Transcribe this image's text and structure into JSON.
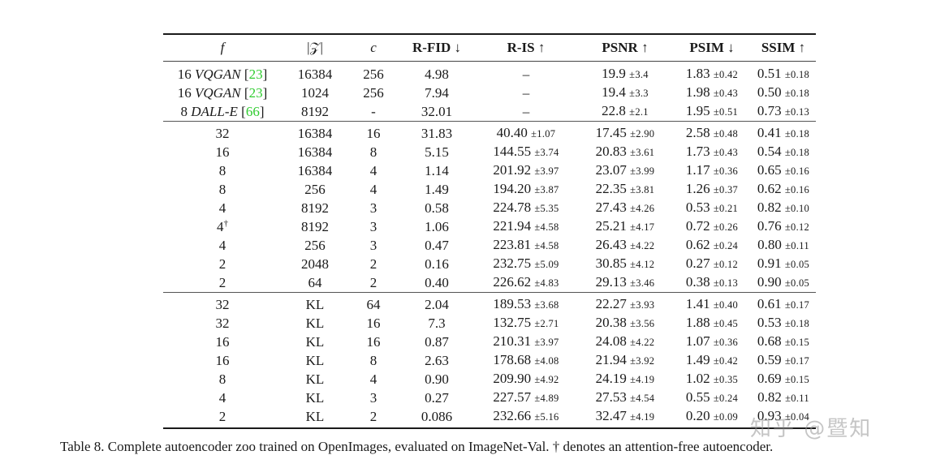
{
  "table": {
    "headers": {
      "f": "f",
      "z": "|𝒵|",
      "c": "c",
      "rfid": "R-FID ↓",
      "ris": "R-IS ↑",
      "psnr": "PSNR ↑",
      "psim": "PSIM ↓",
      "ssim": "SSIM ↑"
    },
    "baselines": [
      {
        "f_num": "16",
        "f_name": "VQGAN",
        "ref": "23",
        "z": "16384",
        "c": "256",
        "rfid": "4.98",
        "ris": "–",
        "ris_pm": "",
        "psnr": "19.9",
        "psnr_pm": "±3.4",
        "psim": "1.83",
        "psim_pm": "±0.42",
        "ssim": "0.51",
        "ssim_pm": "±0.18"
      },
      {
        "f_num": "16",
        "f_name": "VQGAN",
        "ref": "23",
        "z": "1024",
        "c": "256",
        "rfid": "7.94",
        "ris": "–",
        "ris_pm": "",
        "psnr": "19.4",
        "psnr_pm": "±3.3",
        "psim": "1.98",
        "psim_pm": "±0.43",
        "ssim": "0.50",
        "ssim_pm": "±0.18"
      },
      {
        "f_num": "8",
        "f_name": "DALL-E",
        "ref": "66",
        "z": "8192",
        "c": "-",
        "rfid": "32.01",
        "ris": "–",
        "ris_pm": "",
        "psnr": "22.8",
        "psnr_pm": "±2.1",
        "psim": "1.95",
        "psim_pm": "±0.51",
        "ssim": "0.73",
        "ssim_pm": "±0.13"
      }
    ],
    "vq_rows": [
      {
        "f": "32",
        "dagger": "",
        "z": "16384",
        "c": "16",
        "rfid": "31.83",
        "ris": "40.40",
        "ris_pm": "±1.07",
        "psnr": "17.45",
        "psnr_pm": "±2.90",
        "psim": "2.58",
        "psim_pm": "±0.48",
        "ssim": "0.41",
        "ssim_pm": "±0.18"
      },
      {
        "f": "16",
        "dagger": "",
        "z": "16384",
        "c": "8",
        "rfid": "5.15",
        "ris": "144.55",
        "ris_pm": "±3.74",
        "psnr": "20.83",
        "psnr_pm": "±3.61",
        "psim": "1.73",
        "psim_pm": "±0.43",
        "ssim": "0.54",
        "ssim_pm": "±0.18"
      },
      {
        "f": "8",
        "dagger": "",
        "z": "16384",
        "c": "4",
        "rfid": "1.14",
        "ris": "201.92",
        "ris_pm": "±3.97",
        "psnr": "23.07",
        "psnr_pm": "±3.99",
        "psim": "1.17",
        "psim_pm": "±0.36",
        "ssim": "0.65",
        "ssim_pm": "±0.16"
      },
      {
        "f": "8",
        "dagger": "",
        "z": "256",
        "c": "4",
        "rfid": "1.49",
        "ris": "194.20",
        "ris_pm": "±3.87",
        "psnr": "22.35",
        "psnr_pm": "±3.81",
        "psim": "1.26",
        "psim_pm": "±0.37",
        "ssim": "0.62",
        "ssim_pm": "±0.16"
      },
      {
        "f": "4",
        "dagger": "",
        "z": "8192",
        "c": "3",
        "rfid": "0.58",
        "ris": "224.78",
        "ris_pm": "±5.35",
        "psnr": "27.43",
        "psnr_pm": "±4.26",
        "psim": "0.53",
        "psim_pm": "±0.21",
        "ssim": "0.82",
        "ssim_pm": "±0.10"
      },
      {
        "f": "4",
        "dagger": "†",
        "z": "8192",
        "c": "3",
        "rfid": "1.06",
        "ris": "221.94",
        "ris_pm": "±4.58",
        "psnr": "25.21",
        "psnr_pm": "±4.17",
        "psim": "0.72",
        "psim_pm": "±0.26",
        "ssim": "0.76",
        "ssim_pm": "±0.12"
      },
      {
        "f": "4",
        "dagger": "",
        "z": "256",
        "c": "3",
        "rfid": "0.47",
        "ris": "223.81",
        "ris_pm": "±4.58",
        "psnr": "26.43",
        "psnr_pm": "±4.22",
        "psim": "0.62",
        "psim_pm": "±0.24",
        "ssim": "0.80",
        "ssim_pm": "±0.11"
      },
      {
        "f": "2",
        "dagger": "",
        "z": "2048",
        "c": "2",
        "rfid": "0.16",
        "ris": "232.75",
        "ris_pm": "±5.09",
        "psnr": "30.85",
        "psnr_pm": "±4.12",
        "psim": "0.27",
        "psim_pm": "±0.12",
        "ssim": "0.91",
        "ssim_pm": "±0.05"
      },
      {
        "f": "2",
        "dagger": "",
        "z": "64",
        "c": "2",
        "rfid": "0.40",
        "ris": "226.62",
        "ris_pm": "±4.83",
        "psnr": "29.13",
        "psnr_pm": "±3.46",
        "psim": "0.38",
        "psim_pm": "±0.13",
        "ssim": "0.90",
        "ssim_pm": "±0.05"
      }
    ],
    "kl_rows": [
      {
        "f": "32",
        "z": "KL",
        "c": "64",
        "rfid": "2.04",
        "ris": "189.53",
        "ris_pm": "±3.68",
        "psnr": "22.27",
        "psnr_pm": "±3.93",
        "psim": "1.41",
        "psim_pm": "±0.40",
        "ssim": "0.61",
        "ssim_pm": "±0.17"
      },
      {
        "f": "32",
        "z": "KL",
        "c": "16",
        "rfid": "7.3",
        "ris": "132.75",
        "ris_pm": "±2.71",
        "psnr": "20.38",
        "psnr_pm": "±3.56",
        "psim": "1.88",
        "psim_pm": "±0.45",
        "ssim": "0.53",
        "ssim_pm": "±0.18"
      },
      {
        "f": "16",
        "z": "KL",
        "c": "16",
        "rfid": "0.87",
        "ris": "210.31",
        "ris_pm": "±3.97",
        "psnr": "24.08",
        "psnr_pm": "±4.22",
        "psim": "1.07",
        "psim_pm": "±0.36",
        "ssim": "0.68",
        "ssim_pm": "±0.15"
      },
      {
        "f": "16",
        "z": "KL",
        "c": "8",
        "rfid": "2.63",
        "ris": "178.68",
        "ris_pm": "±4.08",
        "psnr": "21.94",
        "psnr_pm": "±3.92",
        "psim": "1.49",
        "psim_pm": "±0.42",
        "ssim": "0.59",
        "ssim_pm": "±0.17"
      },
      {
        "f": "8",
        "z": "KL",
        "c": "4",
        "rfid": "0.90",
        "ris": "209.90",
        "ris_pm": "±4.92",
        "psnr": "24.19",
        "psnr_pm": "±4.19",
        "psim": "1.02",
        "psim_pm": "±0.35",
        "ssim": "0.69",
        "ssim_pm": "±0.15"
      },
      {
        "f": "4",
        "z": "KL",
        "c": "3",
        "rfid": "0.27",
        "ris": "227.57",
        "ris_pm": "±4.89",
        "psnr": "27.53",
        "psnr_pm": "±4.54",
        "psim": "0.55",
        "psim_pm": "±0.24",
        "ssim": "0.82",
        "ssim_pm": "±0.11"
      },
      {
        "f": "2",
        "z": "KL",
        "c": "2",
        "rfid": "0.086",
        "ris": "232.66",
        "ris_pm": "±5.16",
        "psnr": "32.47",
        "psnr_pm": "±4.19",
        "psim": "0.20",
        "psim_pm": "±0.09",
        "ssim": "0.93",
        "ssim_pm": "±0.04"
      }
    ]
  },
  "caption": "Table 8.  Complete autoencoder zoo trained on OpenImages, evaluated on ImageNet-Val. † denotes an attention-free autoencoder.",
  "watermark": "知乎 @暨知",
  "colors": {
    "citation_link": "#2fcc2f",
    "text": "#1a1a1a"
  }
}
